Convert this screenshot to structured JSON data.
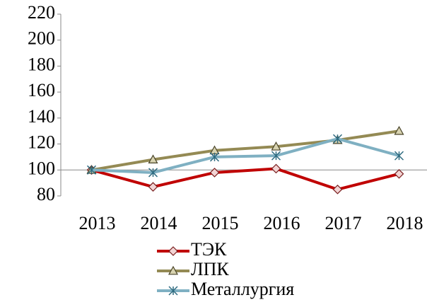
{
  "chart_data": {
    "type": "line",
    "categories": [
      "2013",
      "2014",
      "2015",
      "2016",
      "2017",
      "2018"
    ],
    "series": [
      {
        "name": "ТЭК",
        "color": "#c00000",
        "marker": "diamond",
        "marker_fill": "#f2d4d4",
        "values": [
          100,
          87,
          98,
          101,
          85,
          97
        ]
      },
      {
        "name": "ЛПК",
        "color": "#948a54",
        "marker": "triangle",
        "marker_fill": "#d8d3b0",
        "values": [
          100,
          108,
          115,
          118,
          123,
          130
        ]
      },
      {
        "name": "Металлургия",
        "color": "#7fb0c2",
        "marker": "star",
        "marker_fill": "none",
        "values": [
          100,
          98,
          110,
          111,
          124,
          111
        ]
      }
    ],
    "ylim": [
      80,
      220
    ],
    "yticks": [
      80,
      100,
      120,
      140,
      160,
      180,
      200,
      220
    ],
    "x_axis_crosses_at": 100,
    "grid": false,
    "legend": "bottom"
  }
}
